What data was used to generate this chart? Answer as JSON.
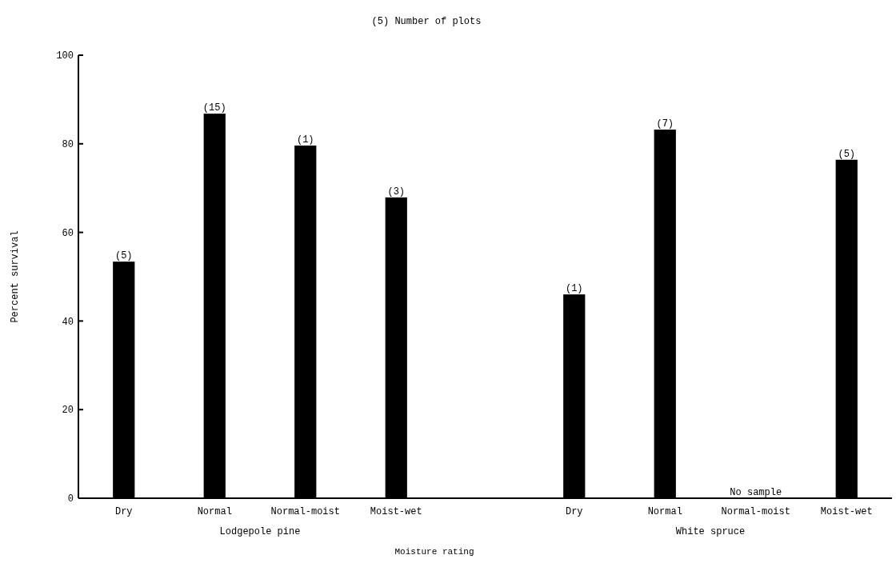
{
  "chart_data": [
    {
      "type": "bar",
      "title": "(5) Number of plots",
      "xlabel": "Lodgepole pine",
      "ylabel": "Percent survival",
      "categories": [
        "Dry",
        "Normal",
        "Normal-moist",
        "Moist-wet"
      ],
      "values": [
        53.4,
        86.8,
        79.6,
        67.9
      ],
      "color": "#000000",
      "ylim": [
        0,
        100
      ],
      "yticks": [
        0,
        20,
        40,
        60,
        80,
        100
      ],
      "annotations": [
        "Moisture rating",
        {
          "text": "(5)",
          "x": "Dry",
          "y": 53.4
        },
        {
          "text": "(15)",
          "x": "Normal",
          "y": 86.8
        },
        {
          "text": "(1)",
          "x": "Normal-moist",
          "y": 79.6
        },
        {
          "text": "(3)",
          "x": "Moist-wet",
          "y": 67.9
        }
      ]
    },
    {
      "type": "bar",
      "xlabel": "White spruce",
      "categories": [
        "Dry",
        "Normal",
        "Normal-moist",
        "Moist-wet"
      ],
      "values": [
        46,
        83.2,
        null,
        76.4
      ],
      "color": "#000000",
      "ylim": [
        0,
        100
      ],
      "yticks": [
        0,
        20,
        40,
        60,
        80,
        100
      ],
      "tick_labels": "x",
      "annotations": [
        "No sample",
        {
          "text": "(1)",
          "x": "Dry",
          "y": 46
        },
        {
          "text": "(7)",
          "x": "Normal",
          "y": 83.2
        },
        {
          "text": "(5)",
          "x": "Moist-wet",
          "y": 76.4
        }
      ]
    }
  ]
}
